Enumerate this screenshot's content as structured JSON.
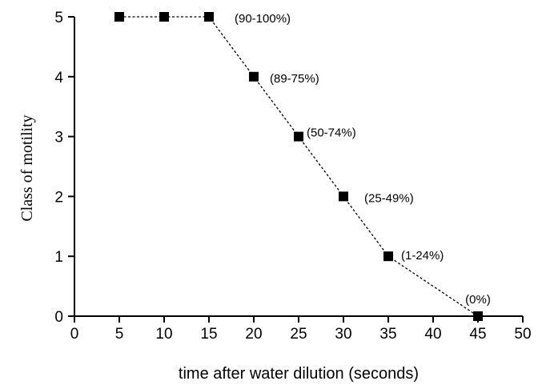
{
  "chart_data": {
    "type": "line",
    "xlabel": "time after water dilution (seconds)",
    "ylabel": "Class of motility",
    "xlim": [
      0,
      50
    ],
    "ylim": [
      0,
      5
    ],
    "xticks": [
      0,
      5,
      10,
      15,
      20,
      25,
      30,
      35,
      40,
      45,
      50
    ],
    "yticks": [
      0,
      1,
      2,
      3,
      4,
      5
    ],
    "grid": false,
    "line_style": "dashed",
    "marker": "square",
    "series": [
      {
        "x": [
          5,
          10,
          15,
          20,
          25,
          30,
          35,
          45
        ],
        "y": [
          5,
          5,
          5,
          4,
          3,
          2,
          1,
          0
        ]
      }
    ],
    "annotations": [
      {
        "text": "(90-100%)",
        "x": 15,
        "y": 5
      },
      {
        "text": "(89-75%)",
        "x": 20,
        "y": 4
      },
      {
        "text": "(50-74%)",
        "x": 25,
        "y": 3
      },
      {
        "text": "(25-49%)",
        "x": 30,
        "y": 2
      },
      {
        "text": "(1-24%)",
        "x": 35,
        "y": 1
      },
      {
        "text": "(0%)",
        "x": 45,
        "y": 0
      }
    ]
  }
}
